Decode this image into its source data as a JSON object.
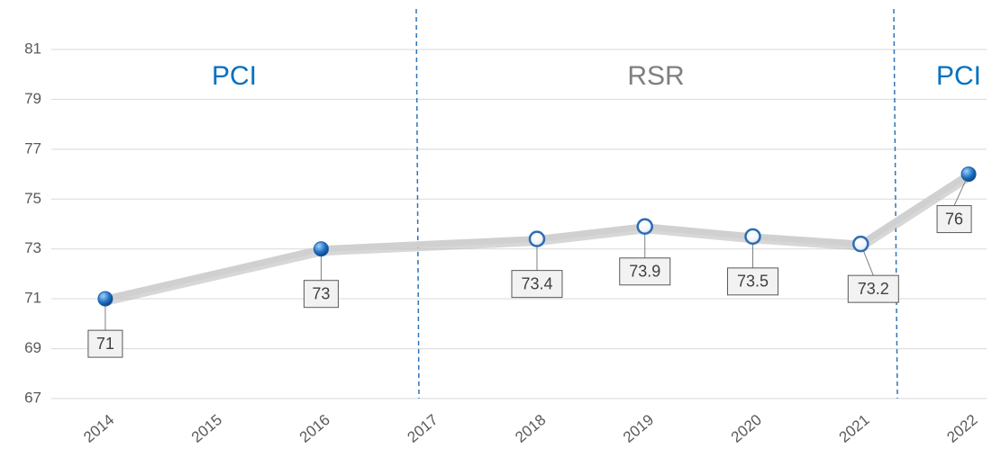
{
  "chart_data": {
    "type": "line",
    "x": [
      2014,
      2016,
      2018,
      2019,
      2020,
      2021,
      2022
    ],
    "values": [
      71,
      73,
      73.4,
      73.9,
      73.5,
      73.2,
      76
    ],
    "color": "#d0d0d0",
    "marker_colors": [
      "#1f6fc0",
      "#1f6fc0",
      "#ffffff",
      "#ffffff",
      "#ffffff",
      "#ffffff",
      "#1f6fc0"
    ],
    "xlim": [
      2013.5,
      2022.3
    ],
    "xticks": [
      2014,
      2015,
      2016,
      2017,
      2018,
      2019,
      2020,
      2021,
      2022
    ],
    "ylim": [
      67,
      81
    ],
    "yticks": [
      67,
      69,
      71,
      73,
      75,
      77,
      79,
      81
    ],
    "grid": true,
    "annotations": [
      {
        "text": "PCI",
        "color": "#0070c0"
      },
      {
        "text": "RSR",
        "color": "#7f7f7f"
      },
      {
        "text": "PCI",
        "color": "#0070c0"
      }
    ]
  }
}
